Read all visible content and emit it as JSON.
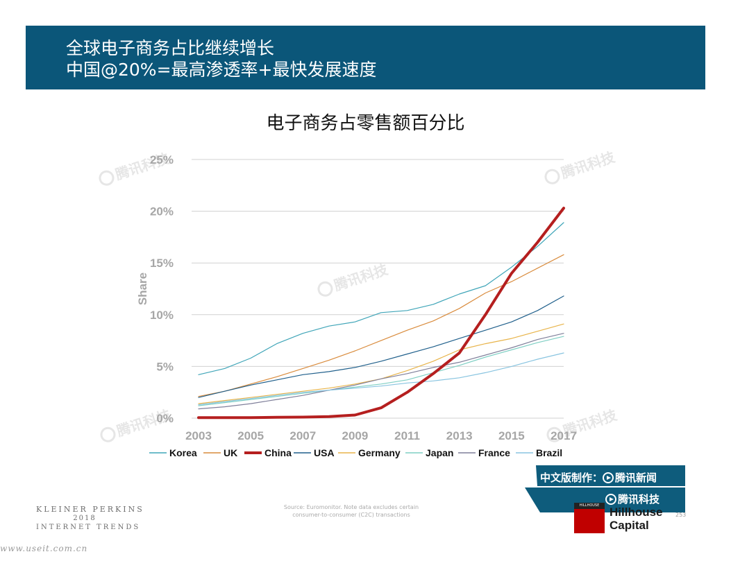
{
  "header": {
    "title_line1": "全球电子商务占比继续增长",
    "title_line2": "中国@20%=最高渗透率+最快发展速度",
    "bg_color": "#0b5679"
  },
  "chart_data": {
    "type": "line",
    "title": "电子商务占零售额百分比",
    "ylabel": "Share",
    "xlabel": "",
    "x": [
      2003,
      2004,
      2005,
      2006,
      2007,
      2008,
      2009,
      2010,
      2011,
      2012,
      2013,
      2014,
      2015,
      2016,
      2017
    ],
    "x_tick_labels": [
      "2003",
      "2005",
      "2007",
      "2009",
      "2011",
      "2013",
      "2015",
      "2017"
    ],
    "y_tick_labels": [
      "0%",
      "5%",
      "10%",
      "15%",
      "20%",
      "25%"
    ],
    "ylim": [
      0,
      25
    ],
    "grid": true,
    "legend_position": "bottom",
    "series": [
      {
        "name": "Korea",
        "color": "#3fa5b8",
        "width": 1.2,
        "values": [
          4.2,
          4.8,
          5.8,
          7.2,
          8.2,
          8.9,
          9.3,
          10.2,
          10.4,
          11.0,
          12.0,
          12.8,
          14.6,
          16.6,
          18.9
        ]
      },
      {
        "name": "UK",
        "color": "#d98b3c",
        "width": 1.2,
        "values": [
          2.1,
          2.6,
          3.3,
          4.0,
          4.8,
          5.6,
          6.5,
          7.5,
          8.5,
          9.4,
          10.6,
          12.1,
          13.2,
          14.5,
          15.8
        ]
      },
      {
        "name": "China",
        "color": "#b51f1f",
        "width": 4,
        "values": [
          0.05,
          0.05,
          0.05,
          0.08,
          0.1,
          0.15,
          0.3,
          1.0,
          2.5,
          4.3,
          6.3,
          10.0,
          14.0,
          17.0,
          20.3
        ]
      },
      {
        "name": "USA",
        "color": "#1f5f8b",
        "width": 1.2,
        "values": [
          2.0,
          2.6,
          3.2,
          3.7,
          4.2,
          4.5,
          4.9,
          5.5,
          6.2,
          6.9,
          7.7,
          8.5,
          9.3,
          10.4,
          11.8
        ]
      },
      {
        "name": "Germany",
        "color": "#e8b44a",
        "width": 1.2,
        "values": [
          1.4,
          1.7,
          2.0,
          2.3,
          2.6,
          2.9,
          3.3,
          3.8,
          4.6,
          5.5,
          6.6,
          7.2,
          7.7,
          8.4,
          9.1
        ]
      },
      {
        "name": "Japan",
        "color": "#7fcfc4",
        "width": 1.2,
        "values": [
          1.2,
          1.5,
          1.8,
          2.1,
          2.4,
          2.7,
          3.0,
          3.3,
          3.7,
          4.4,
          5.1,
          5.9,
          6.6,
          7.3,
          7.9
        ]
      },
      {
        "name": "France",
        "color": "#7f7f9a",
        "width": 1.2,
        "values": [
          0.9,
          1.1,
          1.4,
          1.8,
          2.2,
          2.7,
          3.2,
          3.8,
          4.3,
          4.9,
          5.4,
          6.1,
          6.8,
          7.6,
          8.2
        ]
      },
      {
        "name": "Brazil",
        "color": "#88c4e0",
        "width": 1.2,
        "values": [
          1.3,
          1.6,
          1.9,
          2.2,
          2.5,
          2.7,
          2.9,
          3.1,
          3.4,
          3.6,
          3.9,
          4.4,
          5.0,
          5.7,
          6.3
        ]
      }
    ]
  },
  "footer": {
    "kp_name": "KLEINER PERKINS",
    "kp_year": "2018",
    "kp_trends": "INTERNET TRENDS",
    "source_line1": "Source: Euromonitor. Note data excludes certain",
    "source_line2": "consumer-to-consumer (C2C) transactions",
    "page_number": "253",
    "credit_line1": "中文版制作：",
    "credit_tencent_news": "腾讯新闻",
    "credit_tencent_tech": "腾讯科技",
    "hillhouse_line1": "Hillhouse",
    "hillhouse_line2": "Capital",
    "hillhouse_logo_text": "HILLHOUSE",
    "site": "www.useit.com.cn",
    "watermark": "腾讯科技"
  }
}
